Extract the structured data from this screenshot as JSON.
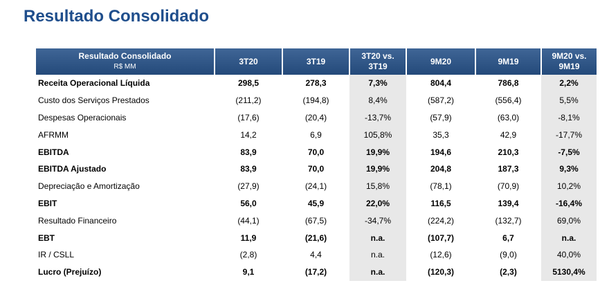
{
  "header": {
    "title": "Resultado Consolidado"
  },
  "table": {
    "corner": {
      "title": "Resultado Consolidado",
      "subtitle": "R$ MM"
    },
    "columns": [
      "3T20",
      "3T19",
      "3T20 vs. 3T19",
      "9M20",
      "9M19",
      "9M20 vs. 9M19"
    ],
    "rows": [
      {
        "label": "Receita Operacional Líquida",
        "bold": true,
        "values": [
          "298,5",
          "278,3",
          "7,3%",
          "804,4",
          "786,8",
          "2,2%"
        ]
      },
      {
        "label": "Custo dos Serviços Prestados",
        "values": [
          "(211,2)",
          "(194,8)",
          "8,4%",
          "(587,2)",
          "(556,4)",
          "5,5%"
        ]
      },
      {
        "label": "Despesas Operacionais",
        "values": [
          "(17,6)",
          "(20,4)",
          "-13,7%",
          "(57,9)",
          "(63,0)",
          "-8,1%"
        ]
      },
      {
        "label": "AFRMM",
        "values": [
          "14,2",
          "6,9",
          "105,8%",
          "35,3",
          "42,9",
          "-17,7%"
        ]
      },
      {
        "label": "EBITDA",
        "bold": true,
        "values": [
          "83,9",
          "70,0",
          "19,9%",
          "194,6",
          "210,3",
          "-7,5%"
        ]
      },
      {
        "label": "EBITDA Ajustado",
        "bold": true,
        "values": [
          "83,9",
          "70,0",
          "19,9%",
          "204,8",
          "187,3",
          "9,3%"
        ]
      },
      {
        "label": "Depreciação e Amortização",
        "values": [
          "(27,9)",
          "(24,1)",
          "15,8%",
          "(78,1)",
          "(70,9)",
          "10,2%"
        ]
      },
      {
        "label": "EBIT",
        "bold": true,
        "values": [
          "56,0",
          "45,9",
          "22,0%",
          "116,5",
          "139,4",
          "-16,4%"
        ]
      },
      {
        "label": "Resultado Financeiro",
        "values": [
          "(44,1)",
          "(67,5)",
          "-34,7%",
          "(224,2)",
          "(132,7)",
          "69,0%"
        ]
      },
      {
        "label": "EBT",
        "bold": true,
        "values": [
          "11,9",
          "(21,6)",
          "n.a.",
          "(107,7)",
          "6,7",
          "n.a."
        ]
      },
      {
        "label": "IR / CSLL",
        "values": [
          "(2,8)",
          "4,4",
          "n.a.",
          "(12,6)",
          "(9,0)",
          "40,0%"
        ]
      },
      {
        "label": "Lucro (Prejuízo)",
        "bold": true,
        "values": [
          "9,1",
          "(17,2)",
          "n.a.",
          "(120,3)",
          "(2,3)",
          "5130,4%"
        ]
      }
    ]
  }
}
